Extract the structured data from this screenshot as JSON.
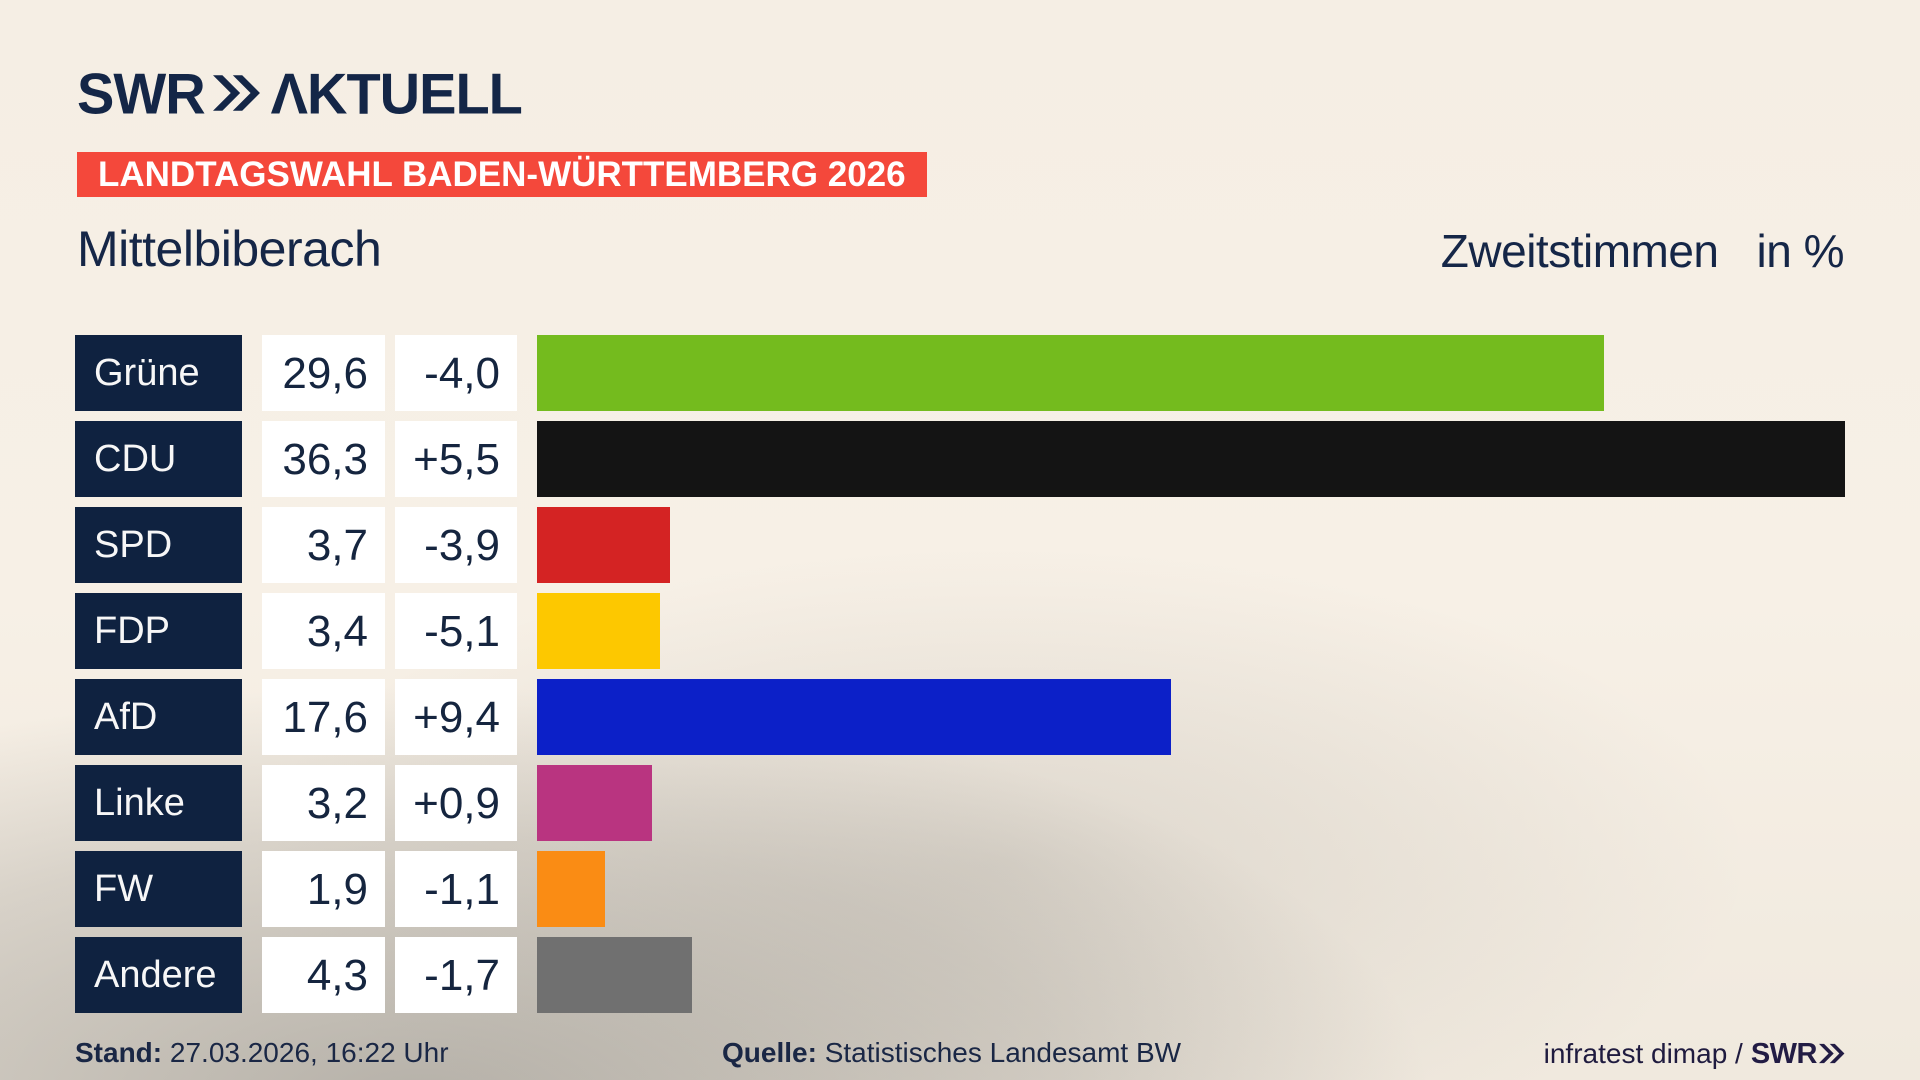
{
  "header": {
    "logo_brand": "SWR",
    "logo_suffix": "ΛKTUELL",
    "banner": "LANDTAGSWAHL BADEN-WÜRTTEMBERG 2026"
  },
  "title": {
    "region": "Mittelbiberach",
    "measure": "Zweitstimmen",
    "unit": "in %"
  },
  "footer": {
    "stand_label": "Stand:",
    "stand_value": "27.03.2026, 16:22 Uhr",
    "quelle_label": "Quelle:",
    "quelle_value": "Statistisches Landesamt BW",
    "credit_text": "infratest dimap /",
    "credit_brand": "SWR"
  },
  "colors": {
    "background_beige": "#f5eee4",
    "vignette_gray": "#6e6c67",
    "party_box_navy": "#0f2240",
    "text_navy": "#15253f",
    "banner_red": "#f4483b",
    "banner_text": "#ffffff",
    "logo_navy": "#142647",
    "credit_navy": "#221c44",
    "cell_white": "#ffffff"
  },
  "chart_data": {
    "type": "bar",
    "orientation": "horizontal",
    "title": "Zweitstimmen in %",
    "region": "Mittelbiberach",
    "unit": "%",
    "categories": [
      "Grüne",
      "CDU",
      "SPD",
      "FDP",
      "AfD",
      "Linke",
      "FW",
      "Andere"
    ],
    "values": [
      29.6,
      36.3,
      3.7,
      3.4,
      17.6,
      3.2,
      1.9,
      4.3
    ],
    "change": [
      -4.0,
      5.5,
      -3.9,
      -5.1,
      9.4,
      0.9,
      -1.1,
      -1.7
    ],
    "value_labels": [
      "29,6",
      "36,3",
      "3,7",
      "3,4",
      "17,6",
      "3,2",
      "1,9",
      "4,3"
    ],
    "change_labels": [
      "-4,0",
      "+5,5",
      "-3,9",
      "-5,1",
      "+9,4",
      "+0,9",
      "-1,1",
      "-1,7"
    ],
    "bar_colors": [
      "#74bb1e",
      "#141414",
      "#d42323",
      "#fdc800",
      "#0c20c8",
      "#b93480",
      "#fa8c14",
      "#707070"
    ],
    "xlim": [
      0,
      36.3
    ],
    "grid": false,
    "legend": false
  }
}
